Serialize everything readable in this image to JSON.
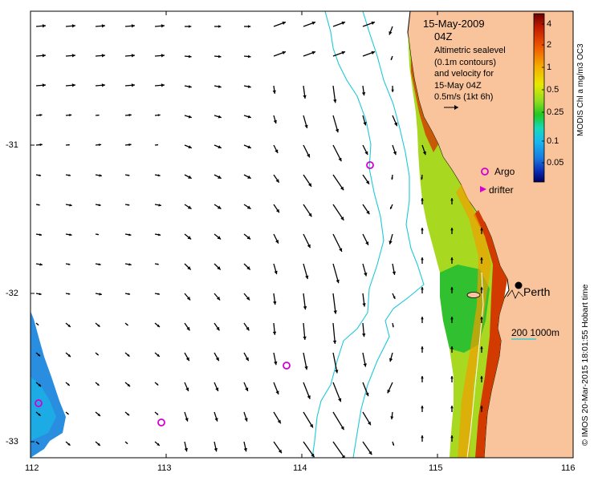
{
  "map": {
    "date": "15-May-2009",
    "time": "04Z",
    "description": [
      "Altimetric sealevel",
      "(0.1m contours)",
      "and velocity for",
      "15-May 04Z",
      "0.5m/s (1kt 6h)"
    ],
    "colorbar": {
      "title": "MODIS Chl a mg/m3 OC3",
      "labels": [
        "4",
        "2",
        "1",
        "0.5",
        "0.25",
        "0.1",
        "0.05"
      ]
    },
    "legend": {
      "argo": "Argo",
      "drifter": "drifter"
    },
    "place": "Perth",
    "contour_label": "200  1000m",
    "x_axis": {
      "ticks": [
        "112",
        "113",
        "114",
        "115",
        "116"
      ],
      "values": [
        112,
        113,
        114,
        115,
        116
      ]
    },
    "y_axis": {
      "ticks": [
        "-31",
        "-32",
        "-33"
      ],
      "values": [
        -31,
        -32,
        -33
      ]
    },
    "credit": "© IMOS 20-Mar-2015 18:01:55 Hobart time",
    "colors": {
      "land": "#f9c49c",
      "coast": "#000000",
      "bathymetry": "#1cc9d8",
      "argo": "#d100d1",
      "frame": "#000000"
    }
  }
}
